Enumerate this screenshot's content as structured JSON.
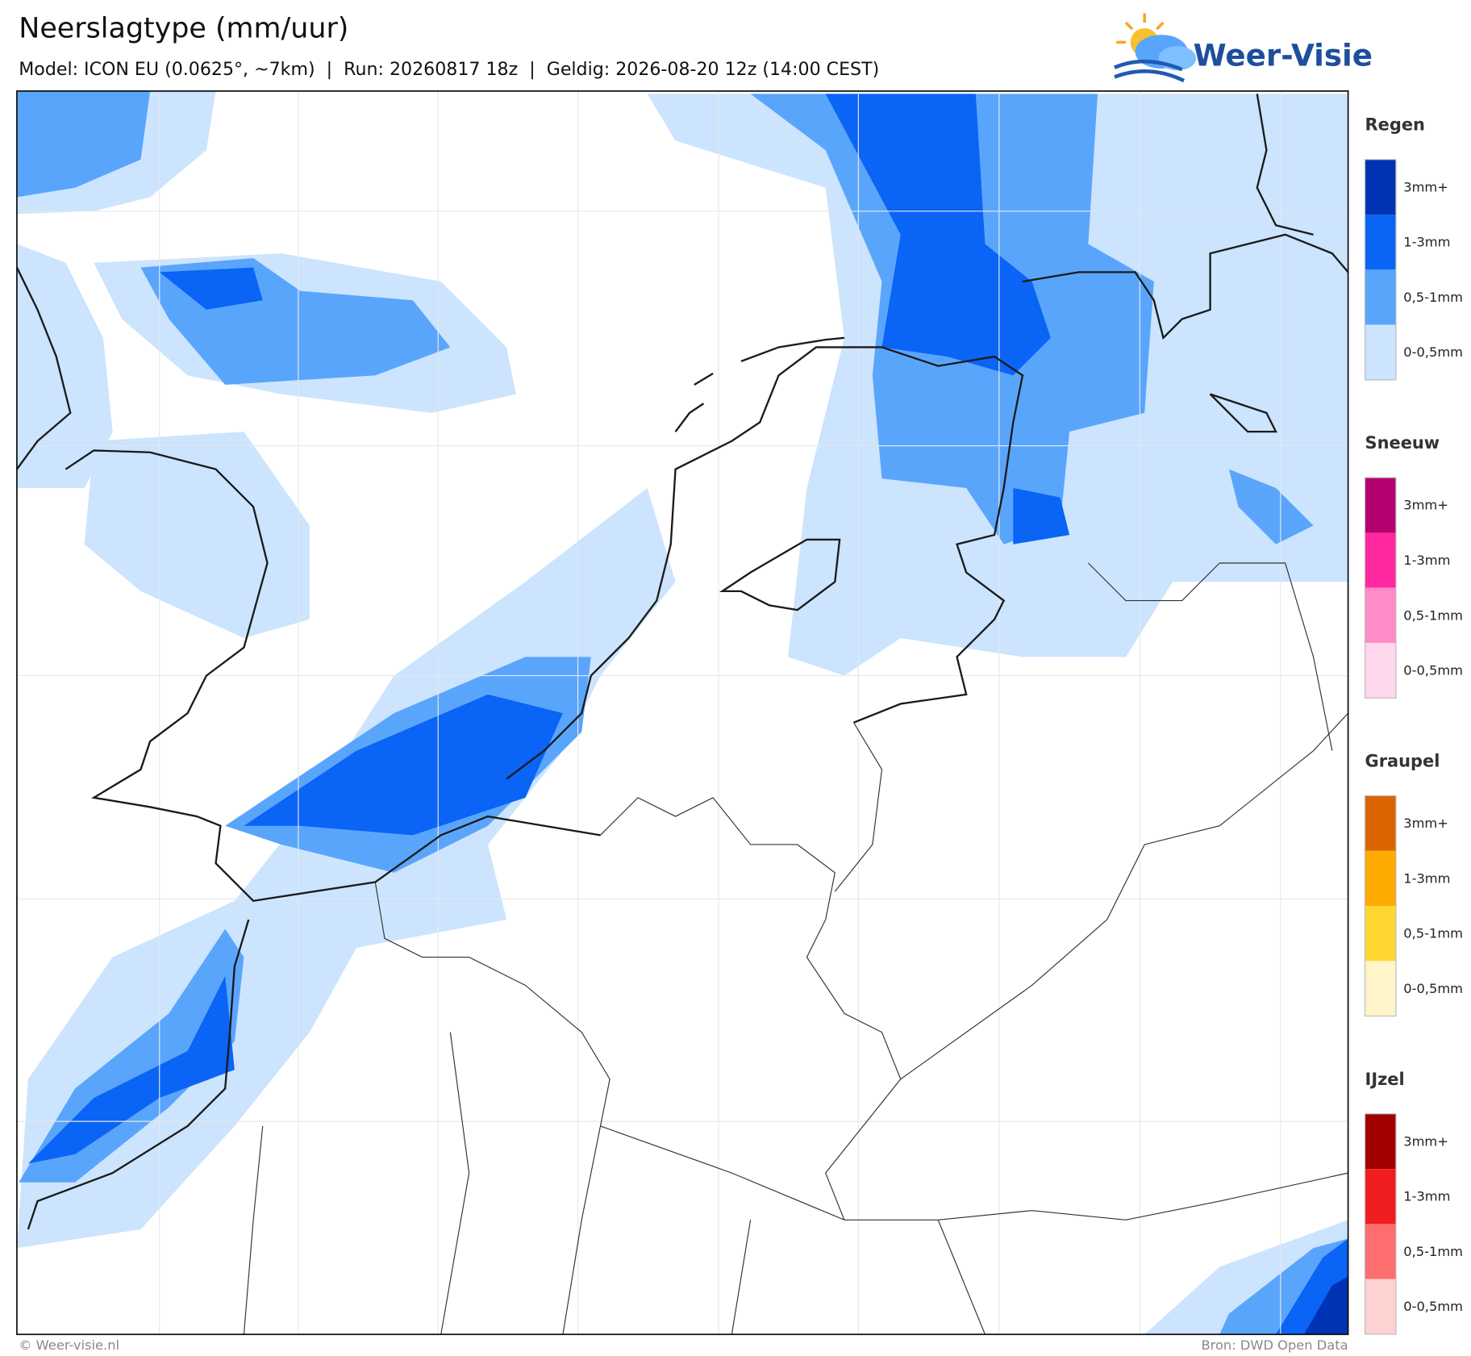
{
  "header": {
    "title": "Neerslagtype (mm/uur)",
    "subtitle": "Model: ICON EU (0.0625°, ~7km)  |  Run: 20260817 18z  |  Geldig: 2026-08-20 12z (14:00 CEST)"
  },
  "logo": {
    "text": "Weer-Visie"
  },
  "legend": {
    "sections": [
      {
        "title": "Regen",
        "colors": [
          "#0032b4",
          "#0a64f5",
          "#5aa5fc",
          "#cce4fd"
        ],
        "labels": [
          "3mm+",
          "1-3mm",
          "0,5-1mm",
          "0-0,5mm"
        ]
      },
      {
        "title": "Sneeuw",
        "colors": [
          "#b4006e",
          "#ff28a0",
          "#ff8cc8",
          "#ffd7ec"
        ],
        "labels": [
          "3mm+",
          "1-3mm",
          "0,5-1mm",
          "0-0,5mm"
        ]
      },
      {
        "title": "Graupel",
        "colors": [
          "#dc6400",
          "#ffaa00",
          "#ffd732",
          "#fff5c8"
        ],
        "labels": [
          "3mm+",
          "1-3mm",
          "0,5-1mm",
          "0-0,5mm"
        ]
      },
      {
        "title": "IJzel",
        "colors": [
          "#a00000",
          "#f01e1e",
          "#ff6e6e",
          "#ffd2d2"
        ],
        "labels": [
          "3mm+",
          "1-3mm",
          "0,5-1mm",
          "0-0,5mm"
        ]
      }
    ]
  },
  "footer": {
    "left": "© Weer-visie.nl",
    "right": "Bron: DWD Open Data"
  }
}
